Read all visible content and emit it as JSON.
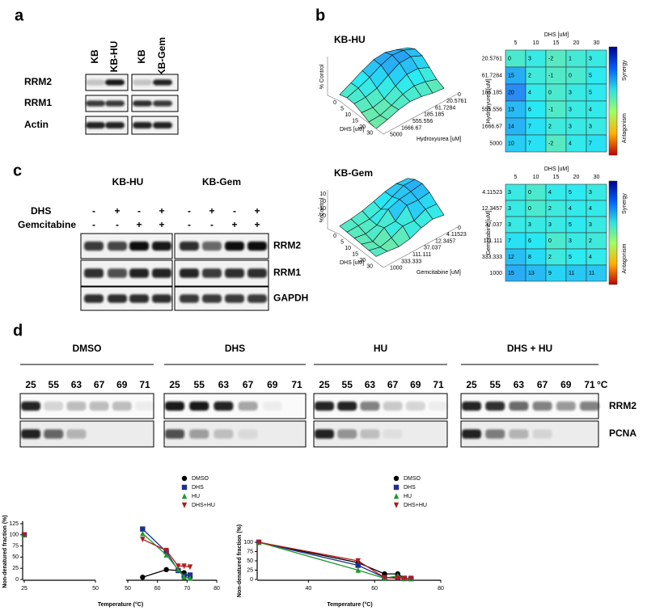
{
  "panel_a": {
    "label": "a",
    "lanes": [
      "KB",
      "KB-HU",
      "KB",
      "KB-Gem"
    ],
    "rows": [
      "RRM2",
      "RRM1",
      "Actin"
    ]
  },
  "panel_b": {
    "label": "b",
    "plots": [
      {
        "title": "KB-HU",
        "surface": {
          "zlabel": "% Control",
          "xlabel": "DHS [uM]",
          "ylabel": "Hydroxyurea [uM]",
          "xticks": [
            "0",
            "5",
            "10",
            "15",
            "20",
            "30"
          ],
          "yticks": [
            "0",
            "20.5761",
            "61.7284",
            "185.185",
            "555.556",
            "1666.67",
            "5000"
          ]
        },
        "heatmap": {
          "xlabel": "DHS [uM]",
          "ylabel": "Hydroxyurea [uM]",
          "columns": [
            "5",
            "10",
            "15",
            "20",
            "30"
          ],
          "rows": [
            {
              "label": "20.5761",
              "cells": [
                0,
                3,
                -2,
                1,
                3
              ]
            },
            {
              "label": "61.7284",
              "cells": [
                15,
                2,
                -1,
                0,
                5
              ]
            },
            {
              "label": "185.185",
              "cells": [
                20,
                4,
                0,
                3,
                5
              ]
            },
            {
              "label": "555.556",
              "cells": [
                13,
                6,
                -1,
                3,
                4
              ]
            },
            {
              "label": "1666.67",
              "cells": [
                14,
                7,
                2,
                3,
                3
              ]
            },
            {
              "label": "5000",
              "cells": [
                10,
                7,
                -2,
                4,
                7
              ]
            }
          ],
          "scale_labels": [
            "Synergy",
            "Antagonism"
          ]
        }
      },
      {
        "title": "KB-Gem",
        "surface": {
          "zlabel": "% Control",
          "xlabel": "DHS [uM]",
          "ylabel": "Gemcitabine [uM]",
          "zticks": [
            "10",
            "0",
            "-10",
            "-20"
          ],
          "xticks": [
            "0",
            "5",
            "10",
            "15",
            "20",
            "30"
          ],
          "yticks": [
            "0",
            "4.11523",
            "12.3457",
            "37.037",
            "111.111",
            "333.333",
            "1000"
          ]
        },
        "heatmap": {
          "xlabel": "DHS [uM]",
          "ylabel": "Gemcitabine [uM]",
          "columns": [
            "5",
            "10",
            "15",
            "20",
            "30"
          ],
          "rows": [
            {
              "label": "4.11523",
              "cells": [
                3,
                0,
                4,
                5,
                3
              ]
            },
            {
              "label": "12.3457",
              "cells": [
                3,
                0,
                2,
                4,
                4
              ]
            },
            {
              "label": "37.037",
              "cells": [
                3,
                3,
                3,
                5,
                3
              ]
            },
            {
              "label": "111.111",
              "cells": [
                7,
                6,
                0,
                3,
                2
              ]
            },
            {
              "label": "333.333",
              "cells": [
                12,
                8,
                2,
                5,
                4
              ]
            },
            {
              "label": "1000",
              "cells": [
                15,
                13,
                9,
                11,
                11
              ]
            }
          ],
          "scale_labels": [
            "Synergy",
            "Antagonism"
          ]
        }
      }
    ]
  },
  "panel_c": {
    "label": "c",
    "groups": [
      "KB-HU",
      "KB-Gem"
    ],
    "treatments": [
      {
        "name": "DHS",
        "signs": [
          "-",
          "+",
          "-",
          "+",
          "-",
          "+",
          "-",
          "+"
        ]
      },
      {
        "name": "Gemcitabine",
        "signs": [
          "-",
          "-",
          "+",
          "+",
          "-",
          "-",
          "+",
          "+"
        ]
      }
    ],
    "rows": [
      "RRM2",
      "RRM1",
      "GAPDH"
    ]
  },
  "panel_d": {
    "label": "d",
    "unit": "°C",
    "groups": [
      {
        "name": "DMSO",
        "temps": [
          "25",
          "55",
          "63",
          "67",
          "69",
          "71"
        ]
      },
      {
        "name": "DHS",
        "temps": [
          "25",
          "55",
          "63",
          "67",
          "69",
          "71"
        ]
      },
      {
        "name": "HU",
        "temps": [
          "25",
          "55",
          "63",
          "67",
          "69",
          "71"
        ]
      },
      {
        "name": "DHS + HU",
        "temps": [
          "25",
          "55",
          "63",
          "67",
          "69",
          "71"
        ]
      }
    ],
    "rows": [
      "RRM2",
      "PCNA"
    ]
  },
  "chart_data": [
    {
      "type": "line",
      "ylabel": "Non-denatured fraction (%)",
      "xlabel": "Temperature (°C)",
      "x_segments": [
        {
          "xlim": [
            25,
            50
          ],
          "xticks": [
            25,
            50
          ]
        },
        {
          "xlim": [
            50,
            80
          ],
          "xticks": [
            50,
            60,
            70,
            80
          ]
        }
      ],
      "ylim": [
        0,
        125
      ],
      "yticks": [
        0,
        25,
        50,
        75,
        100,
        125
      ],
      "x": [
        25,
        55,
        63,
        67,
        69,
        71
      ],
      "series": [
        {
          "name": "DMSO",
          "color": "#000000",
          "marker": "circle",
          "values": [
            100,
            5,
            22,
            20,
            15,
            5
          ]
        },
        {
          "name": "DHS",
          "color": "#1f2f8f",
          "marker": "square",
          "values": [
            100,
            113,
            62,
            20,
            8,
            10
          ]
        },
        {
          "name": "HU",
          "color": "#1a9a2a",
          "marker": "triangle",
          "values": [
            100,
            103,
            55,
            22,
            5,
            3
          ]
        },
        {
          "name": "DHS+HU",
          "color": "#b01c1c",
          "marker": "triangle-down",
          "values": [
            100,
            90,
            65,
            30,
            30,
            28
          ]
        }
      ]
    },
    {
      "type": "line",
      "ylabel": "Non-denatured fraction (%)",
      "xlabel": "Temperature (°C)",
      "xlim": [
        25,
        80
      ],
      "xticks": [
        40,
        60,
        80
      ],
      "ylim": [
        0,
        100
      ],
      "yticks": [
        0,
        25,
        50,
        75,
        100
      ],
      "x": [
        25,
        55,
        63,
        67,
        69,
        71
      ],
      "series": [
        {
          "name": "DMSO",
          "color": "#000000",
          "marker": "circle",
          "values": [
            100,
            45,
            15,
            15,
            3,
            3
          ]
        },
        {
          "name": "DHS",
          "color": "#1f2f8f",
          "marker": "square",
          "values": [
            100,
            38,
            5,
            5,
            3,
            2
          ]
        },
        {
          "name": "HU",
          "color": "#1a9a2a",
          "marker": "triangle",
          "values": [
            100,
            25,
            3,
            10,
            2,
            2
          ]
        },
        {
          "name": "DHS+HU",
          "color": "#b01c1c",
          "marker": "triangle-down",
          "values": [
            100,
            50,
            5,
            3,
            3,
            3
          ]
        }
      ]
    }
  ]
}
